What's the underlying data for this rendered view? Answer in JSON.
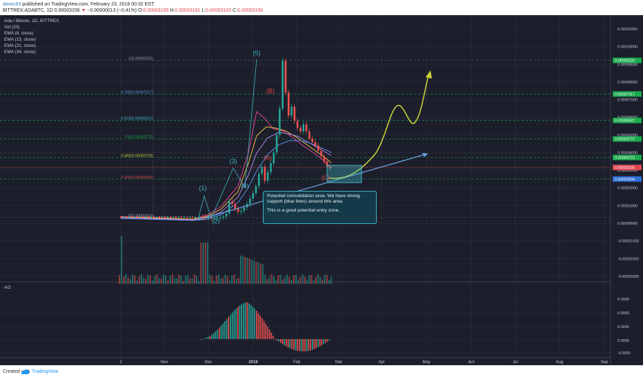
{
  "header": {
    "user": "davec83",
    "published_text": "published on TradingView.com, February 23, 2018 00:32 EST",
    "symbol_text": "BITTREX:ADABTC, 1D 0.00003156",
    "change": "−0.00000013 (−0.41%)",
    "ohlc": [
      {
        "k": "O:",
        "v": "0.00003165"
      },
      {
        "k": "H:",
        "v": "0.00003181"
      },
      {
        "k": "L:",
        "v": "0.00003100"
      },
      {
        "k": "C:",
        "v": "0.00003156"
      }
    ]
  },
  "legend": [
    "Ada / Bitcoin, 1D, BITTREX",
    "Vol (20)",
    "EMA (8, close)",
    "EMA (13, close)",
    "EMA (21, close)",
    "EMA (34, close)"
  ],
  "ao_label": "AO",
  "annotation": {
    "line1": "Potential consolidation area. We have strong support (blue lines) around this area.",
    "line2": "This is a good potential entry zone."
  },
  "footer": {
    "created": "Created with",
    "brand": "TradingView"
  },
  "chart_data": {
    "type": "candlestick",
    "symbol": "ADABTC",
    "exchange": "BITTREX",
    "interval": "1D",
    "y_axis_ticks": [
      "0.00011000",
      "0.00010000",
      "0.00009000",
      "0.00008000",
      "0.00007000",
      "0.00006000",
      "0.00005000",
      "0.00004000",
      "0.00003000",
      "0.00002000",
      "0.00001000",
      "0.00000000",
      "-0.00001000",
      "-0.00002000",
      "-0.00003000"
    ],
    "price_tags": [
      {
        "label": "0.00009220",
        "value": 9.22e-05,
        "color": "#1aa94c"
      },
      {
        "label": "0.00007317",
        "value": 7.317e-05,
        "color": "#1aa94c"
      },
      {
        "label": "0.00005822",
        "value": 5.822e-05,
        "color": "#1aa94c"
      },
      {
        "label": "0.00004772",
        "value": 4.772e-05,
        "color": "#1aa94c"
      },
      {
        "label": "0.00003723",
        "value": 3.723e-05,
        "color": "#1aa94c"
      },
      {
        "label": "0.00003165",
        "value": 3.165e-05,
        "color": "#2f6fd6"
      },
      {
        "label": "0.00003156",
        "value": 3.156e-05,
        "color": "#e0464e"
      },
      {
        "label": "0.00002504",
        "value": 2.504e-05,
        "color": "#2f6fd6"
      }
    ],
    "x_axis_ticks": [
      "2",
      "Nov",
      "Dec",
      "2018",
      "Feb",
      "Mar",
      "Apr",
      "May",
      "Jun",
      "Jul",
      "Aug",
      "Sep"
    ],
    "fibonacci": [
      {
        "label": "1(0.00009220)",
        "value": 9.22e-05
      },
      {
        "label": "0.786(0.00007317)",
        "value": 7.317e-05
      },
      {
        "label": "0.618(0.00005822)",
        "value": 5.822e-05
      },
      {
        "label": "0.5(0.00004772)",
        "value": 4.772e-05
      },
      {
        "label": "0.382(0.00003723)",
        "value": 3.723e-05
      },
      {
        "label": "0.236(0.00002504)",
        "value": 2.504e-05
      },
      {
        "label": "0(0.00000324)",
        "value": 3.24e-06
      }
    ],
    "wave_labels": [
      "(1)",
      "(2)",
      "(3)",
      "(4)",
      "(5)",
      "(A)",
      "(B)",
      "(C)"
    ],
    "close_series": [
      3.5e-06,
      3.4e-06,
      3.3e-06,
      3.3e-06,
      3.2e-06,
      3.2e-06,
      3.3e-06,
      3.4e-06,
      3.8e-06,
      5.5e-06,
      1.25e-05,
      1.1e-05,
      8.2e-06,
      6.5e-06,
      7e-06,
      9e-06,
      1.1e-05,
      1.4e-05,
      1.7e-05,
      2.1e-05,
      2.8e-05,
      3.2e-05,
      2.4e-05,
      2.9e-05,
      3.4e-05,
      4e-05,
      5e-05,
      6.5e-05,
      9.2e-05,
      7.4e-05,
      6.1e-05,
      6.6e-05,
      5.8e-05,
      5.4e-05,
      5.2e-05,
      5.6e-05,
      5.2e-05,
      4.8e-05,
      4.6e-05,
      4.4e-05,
      4.1e-05,
      3.8e-05,
      3.5e-05,
      3.2e-05,
      3.16e-05
    ],
    "ao_ticks": [
      "0.0000",
      "0.0000",
      "0.0000",
      "0.0000",
      "-0.0000"
    ]
  }
}
